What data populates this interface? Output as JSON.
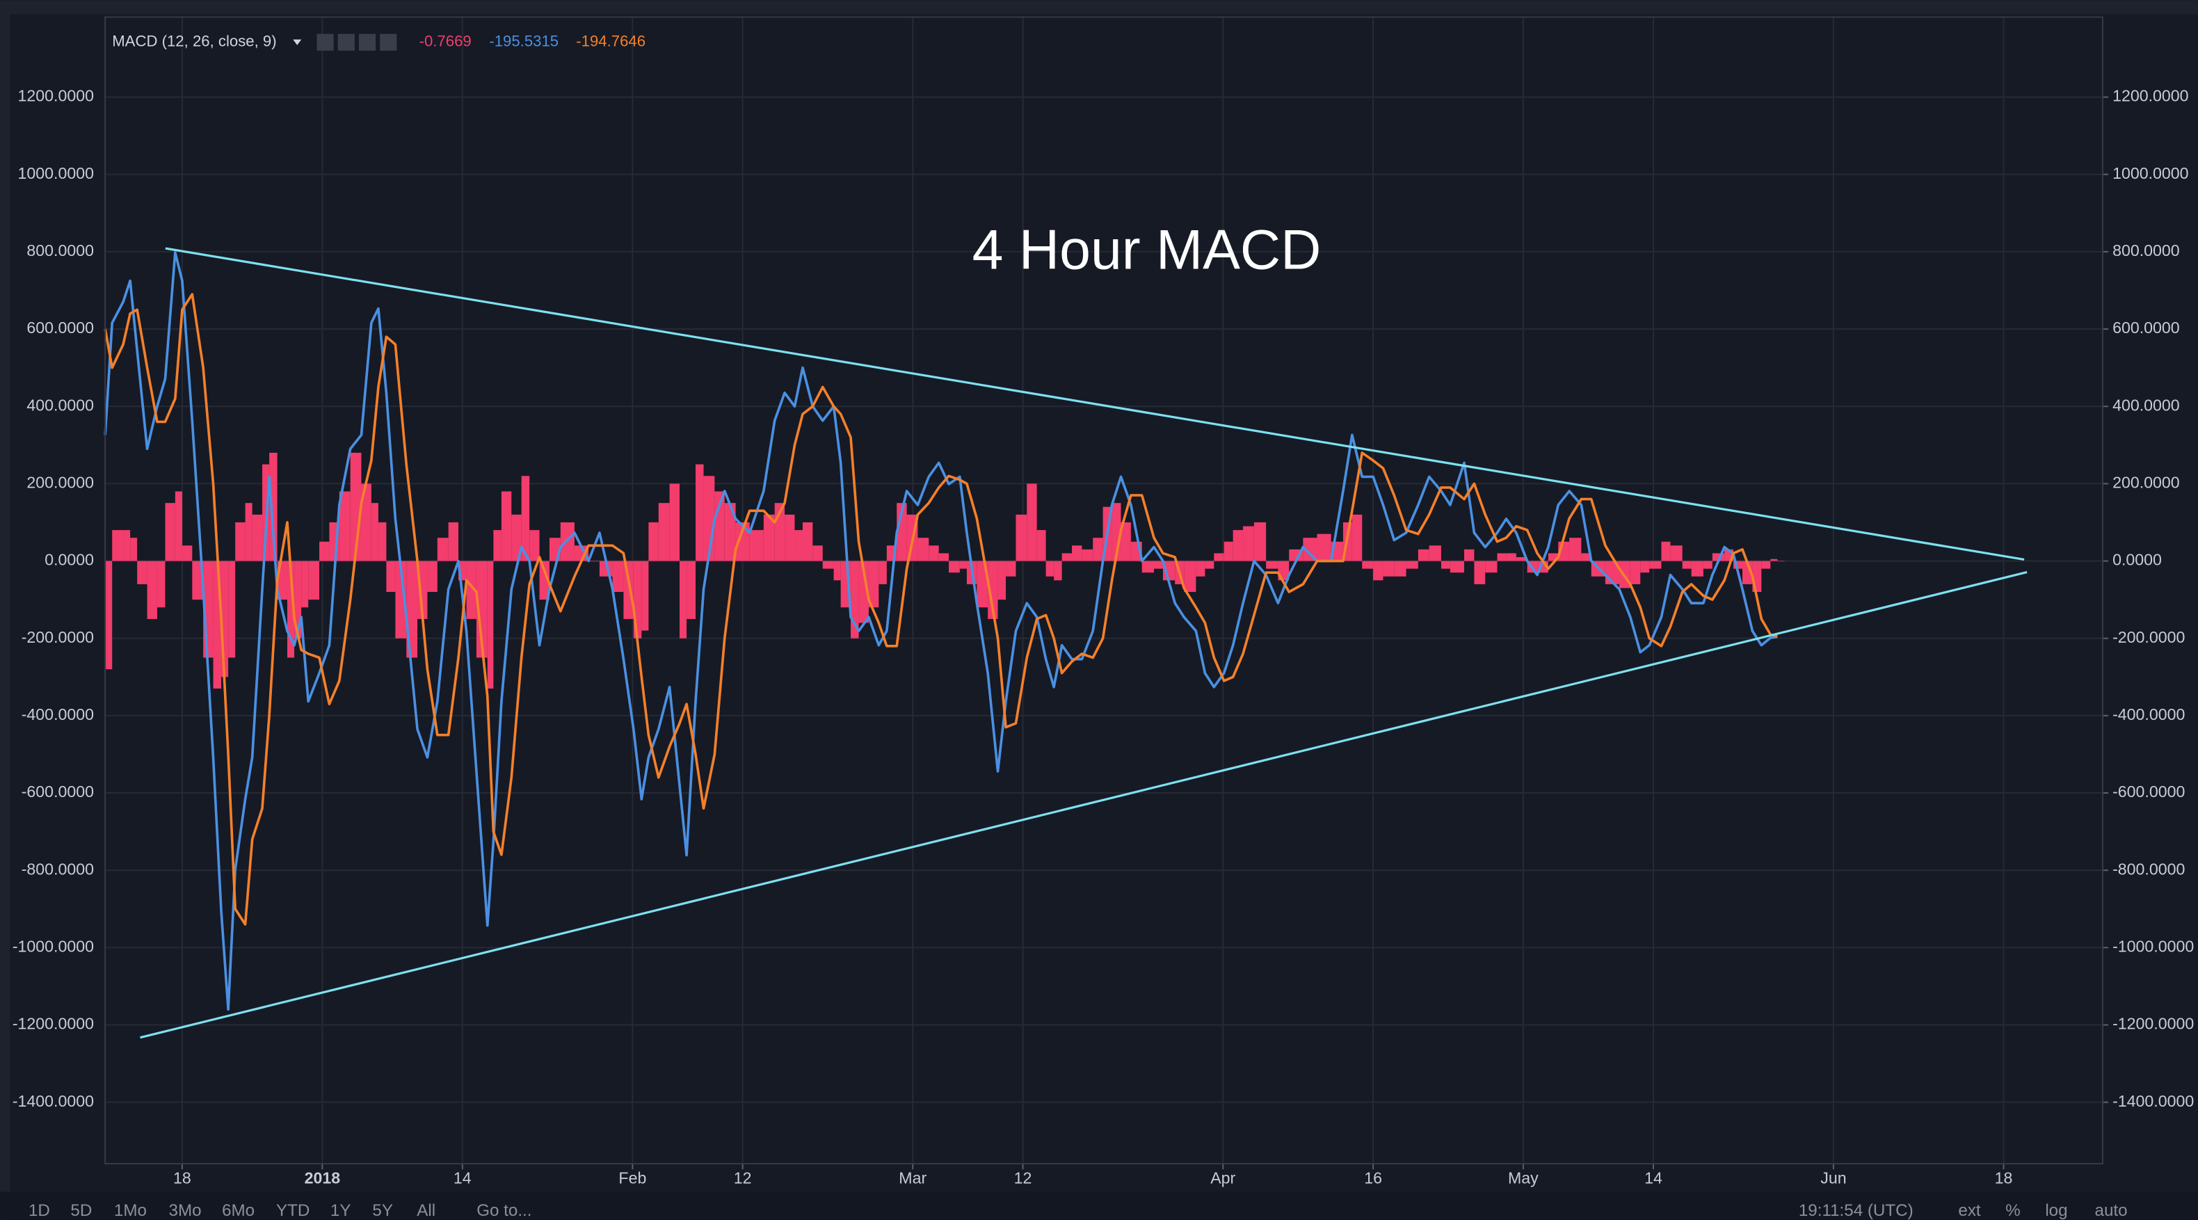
{
  "chart_data": {
    "type": "line",
    "title": "MACD (12, 26, close, 9)",
    "annotation": "4 Hour MACD",
    "legend_values": [
      -0.7669,
      -195.5315,
      -194.7646
    ],
    "x": [
      -21.7,
      -21.0,
      -19.9,
      -19.2,
      -18.5,
      -17.5,
      -16.5,
      -15.7,
      -14.7,
      -14.0,
      -13.0,
      -11.9,
      -10.9,
      -10.1,
      -9.4,
      -8.7,
      -7.7,
      -7.0,
      -6.0,
      -5.3,
      -4.5,
      -3.5,
      -2.8,
      -2.1,
      -1.4,
      -0.3,
      0.7,
      1.7,
      2.8,
      3.9,
      4.9,
      5.6,
      6.4,
      7.3,
      8.4,
      9.5,
      10.5,
      11.5,
      12.6,
      13.6,
      14.4,
      15.4,
      16.5,
      17.1,
      17.9,
      18.9,
      19.9,
      20.7,
      21.7,
      22.7,
      23.8,
      25.2,
      26.6,
      27.7,
      29.0,
      30.1,
      31.1,
      31.9,
      32.6,
      33.6,
      34.7,
      35.7,
      36.4,
      37.3,
      38.1,
      39.2,
      40.2,
      41.3,
      42.7,
      44.1,
      45.2,
      46.2,
      47.2,
      48.0,
      49.0,
      50.0,
      51.1,
      51.8,
      52.8,
      53.6,
      54.6,
      55.6,
      56.4,
      57.4,
      58.4,
      59.5,
      60.6,
      61.6,
      62.6,
      63.7,
      64.4,
      65.4,
      66.5,
      67.5,
      68.3,
      69.3,
      70.4,
      71.4,
      72.3,
      73.1,
      73.9,
      74.9,
      75.9,
      77.0,
      78.0,
      78.9,
      79.8,
      80.8,
      81.9,
      83.1,
      84.0,
      85.2,
      86.1,
      87.3,
      88.2,
      89.1,
      90.1,
      91.0,
      92.0,
      93.1,
      94.3,
      95.5,
      96.6,
      98.0,
      99.4,
      100.8,
      102.0,
      102.9,
      103.9,
      105.0,
      106.0,
      107.1,
      108.3,
      109.5,
      110.6,
      111.8,
      112.7,
      114.1,
      115.1,
      116.2,
      117.4,
      118.3,
      119.3,
      120.4,
      121.4,
      122.5,
      123.5,
      124.6,
      125.8,
      126.8,
      128.2,
      129.6,
      130.7,
      131.7,
      132.6,
      133.8,
      134.7,
      135.9,
      136.8,
      138.0,
      138.9,
      140.1,
      141.0,
      141.9,
      142.9,
      143.8,
      144.7,
      145.4
    ],
    "series": [
      {
        "color": "#4a90e2",
        "values": [
          326,
          616,
          670,
          725,
          544,
          290,
          400,
          471,
          798,
          725,
          363,
          -73,
          -508,
          -906,
          -1160,
          -798,
          -616,
          -508,
          -73,
          218,
          -73,
          -181,
          -218,
          -145,
          -363,
          -290,
          -218,
          145,
          290,
          326,
          616,
          653,
          435,
          109,
          -145,
          -435,
          -508,
          -363,
          -73,
          0,
          -181,
          -544,
          -943,
          -725,
          -363,
          -73,
          36,
          0,
          -218,
          -73,
          36,
          73,
          0,
          73,
          -73,
          -254,
          -435,
          -616,
          -508,
          -435,
          -326,
          -580,
          -761,
          -363,
          -73,
          109,
          181,
          109,
          73,
          181,
          363,
          435,
          400,
          500,
          400,
          363,
          400,
          254,
          -145,
          -181,
          -145,
          -218,
          -181,
          73,
          181,
          145,
          218,
          254,
          199,
          218,
          73,
          -109,
          -290,
          -544,
          -363,
          -181,
          -109,
          -145,
          -254,
          -326,
          -218,
          -254,
          -254,
          -181,
          0,
          145,
          218,
          145,
          0,
          36,
          0,
          -109,
          -145,
          -181,
          -290,
          -326,
          -290,
          -218,
          -109,
          0,
          -36,
          -109,
          -36,
          36,
          0,
          0,
          181,
          326,
          218,
          218,
          145,
          54,
          73,
          145,
          218,
          181,
          145,
          254,
          73,
          36,
          73,
          109,
          73,
          0,
          -36,
          36,
          145,
          181,
          145,
          0,
          -36,
          -73,
          -145,
          -236,
          -218,
          -145,
          -36,
          -73,
          -109,
          -109,
          -36,
          36,
          18,
          -73,
          -181,
          -218,
          -199,
          -196
        ]
      },
      {
        "color": "#f5802a",
        "values": [
          600,
          500,
          560,
          640,
          650,
          500,
          360,
          360,
          420,
          650,
          690,
          500,
          200,
          -150,
          -500,
          -900,
          -940,
          -720,
          -640,
          -400,
          -50,
          100,
          -150,
          -230,
          -240,
          -250,
          -370,
          -310,
          -100,
          150,
          260,
          450,
          580,
          560,
          250,
          0,
          -280,
          -450,
          -450,
          -250,
          -50,
          -80,
          -350,
          -700,
          -760,
          -560,
          -250,
          -60,
          10,
          -60,
          -130,
          -40,
          40,
          40,
          40,
          20,
          -120,
          -300,
          -450,
          -560,
          -480,
          -420,
          -370,
          -500,
          -640,
          -500,
          -200,
          30,
          130,
          130,
          100,
          150,
          300,
          380,
          400,
          450,
          400,
          380,
          320,
          50,
          -100,
          -160,
          -220,
          -220,
          -20,
          120,
          150,
          190,
          220,
          210,
          200,
          110,
          -50,
          -200,
          -430,
          -420,
          -250,
          -150,
          -140,
          -200,
          -290,
          -260,
          -240,
          -250,
          -200,
          -50,
          80,
          170,
          170,
          60,
          20,
          10,
          -70,
          -120,
          -160,
          -250,
          -310,
          -300,
          -240,
          -140,
          -30,
          -30,
          -80,
          -60,
          0,
          0,
          0,
          130,
          280,
          260,
          240,
          170,
          80,
          70,
          120,
          190,
          190,
          160,
          200,
          120,
          50,
          60,
          90,
          80,
          20,
          -20,
          10,
          110,
          160,
          160,
          40,
          -20,
          -60,
          -120,
          -200,
          -220,
          -170,
          -80,
          -60,
          -90,
          -100,
          -50,
          20,
          30,
          -40,
          -150,
          -190,
          -195
        ]
      }
    ],
    "histogram": {
      "color": "#f23d6d",
      "values": [
        -280,
        80,
        80,
        60,
        -60,
        -150,
        -120,
        150,
        180,
        40,
        -100,
        -250,
        -330,
        -300,
        -250,
        100,
        150,
        120,
        250,
        280,
        -100,
        -250,
        -200,
        -120,
        -100,
        50,
        100,
        180,
        280,
        200,
        150,
        100,
        -80,
        -200,
        -250,
        -150,
        -80,
        60,
        100,
        -50,
        -150,
        -250,
        -330,
        80,
        180,
        120,
        220,
        80,
        -100,
        60,
        100,
        40,
        0,
        -40,
        -80,
        -150,
        -200,
        -180,
        100,
        150,
        200,
        -200,
        -150,
        250,
        220,
        180,
        150,
        100,
        80,
        120,
        150,
        120,
        80,
        100,
        40,
        -20,
        -50,
        -120,
        -200,
        -160,
        -120,
        -60,
        40,
        150,
        120,
        60,
        40,
        20,
        -30,
        -20,
        -60,
        -120,
        -150,
        -100,
        -40,
        120,
        200,
        80,
        -40,
        -50,
        20,
        40,
        30,
        60,
        140,
        150,
        100,
        50,
        -30,
        -20,
        -50,
        -60,
        -80,
        -40,
        -20,
        20,
        50,
        80,
        90,
        100,
        -20,
        -50,
        30,
        60,
        70,
        50,
        100,
        120,
        -20,
        -50,
        -40,
        -40,
        -20,
        30,
        40,
        -20,
        -30,
        30,
        -60,
        -30,
        20,
        20,
        10,
        -30,
        -30,
        20,
        50,
        60,
        20,
        -40,
        -60,
        -70,
        -60,
        -30,
        -20,
        50,
        40,
        -20,
        -40,
        -20,
        20,
        30,
        -20,
        -60,
        -80,
        -20,
        5,
        -1
      ]
    },
    "xlim": [
      -21.7,
      177.9
    ],
    "xticks": [
      {
        "value": -14,
        "label": "18"
      },
      {
        "value": 0,
        "label": "2018"
      },
      14,
      {
        "value": 31,
        "label": "Feb"
      },
      {
        "value": 42,
        "label": "12"
      },
      {
        "value": 59,
        "label": "Mar"
      },
      {
        "value": 70,
        "label": "12"
      },
      {
        "value": 90,
        "label": "Apr"
      },
      {
        "value": 105,
        "label": "16"
      },
      {
        "value": 120,
        "label": "May"
      },
      {
        "value": 133,
        "label": "14"
      },
      {
        "value": 151,
        "label": "Jun"
      },
      {
        "value": 168,
        "label": "18"
      }
    ],
    "ylim": [
      -1559,
      1407
    ],
    "yticks": [
      {
        "value": 1200,
        "label": "1200.0000"
      },
      {
        "value": 1000,
        "label": "1000.0000"
      },
      {
        "value": 800,
        "label": "800.0000"
      },
      {
        "value": 600,
        "label": "600.0000"
      },
      {
        "value": 400,
        "label": "400.0000"
      },
      {
        "value": 200,
        "label": "200.0000"
      },
      {
        "value": 0,
        "label": "0.0000"
      },
      {
        "value": -200,
        "label": "-200.0000"
      },
      {
        "value": -400,
        "label": "-400.0000"
      },
      {
        "value": -600,
        "label": "-600.0000"
      },
      {
        "value": -800,
        "label": "-800.0000"
      },
      {
        "value": -1000,
        "label": "-1000.0000"
      },
      {
        "value": -1200,
        "label": "-1200.0000"
      },
      {
        "value": -1400,
        "label": "-1400.0000"
      }
    ],
    "grid": true
  },
  "toolbar": {
    "ranges": [
      "1D",
      "5D",
      "1Mo",
      "3Mo",
      "6Mo",
      "YTD",
      "1Y",
      "5Y",
      "All"
    ],
    "goto": "Go to...",
    "clock": "19:11:54 (UTC)",
    "options": [
      "ext",
      "%",
      "log",
      "auto"
    ]
  }
}
